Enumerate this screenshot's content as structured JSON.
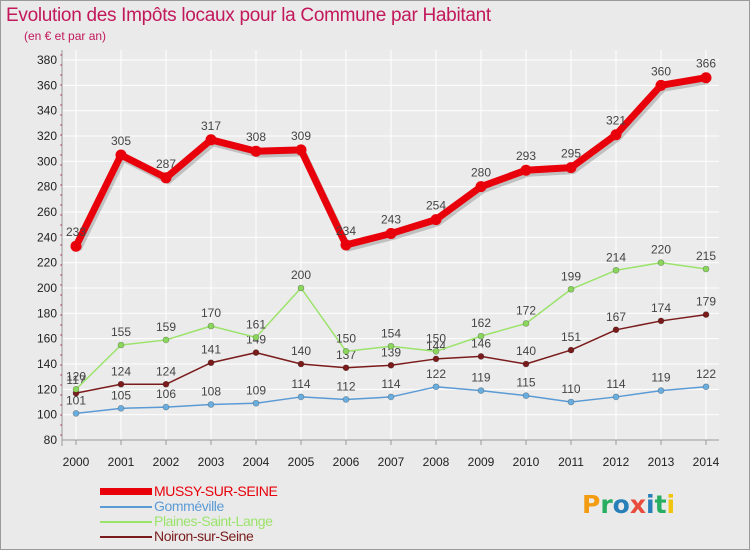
{
  "title": "Evolution des Impôts locaux pour la Commune par Habitant",
  "subtitle": "(en € et par an)",
  "logo": {
    "letters": [
      "P",
      "r",
      "o",
      "x",
      "i",
      "t",
      "i"
    ],
    "colors": [
      "#f39c12",
      "#27ae60",
      "#2980b9",
      "#e74c3c",
      "#2980b9",
      "#27ae60",
      "#f1c40f"
    ]
  },
  "chart_data": {
    "type": "line",
    "title": "Evolution des Impôts locaux pour la Commune par Habitant",
    "subtitle": "(en € et par an)",
    "xlabel": "",
    "ylabel": "",
    "ylim": [
      80,
      380
    ],
    "yticks": [
      80,
      100,
      120,
      140,
      160,
      180,
      200,
      220,
      240,
      260,
      280,
      300,
      320,
      340,
      360,
      380
    ],
    "x": [
      2000,
      2001,
      2002,
      2003,
      2004,
      2005,
      2006,
      2007,
      2008,
      2009,
      2010,
      2011,
      2012,
      2013,
      2014
    ],
    "grid": true,
    "legend_position": "bottom-left",
    "series": [
      {
        "name": "MUSSY-SUR-SEINE",
        "color": "#e8000b",
        "values": [
          233,
          305,
          287,
          317,
          308,
          309,
          234,
          243,
          254,
          280,
          293,
          295,
          321,
          360,
          366
        ]
      },
      {
        "name": "Gomméville",
        "color": "#5b9bd5",
        "values": [
          101,
          105,
          106,
          108,
          109,
          114,
          112,
          114,
          122,
          119,
          115,
          110,
          114,
          119,
          122
        ]
      },
      {
        "name": "Plaines-Saint-Lange",
        "color": "#9be36b",
        "values": [
          120,
          155,
          159,
          170,
          161,
          200,
          150,
          154,
          150,
          162,
          172,
          199,
          214,
          220,
          215
        ]
      },
      {
        "name": "Noiron-sur-Seine",
        "color": "#7b1c1c",
        "values": [
          117,
          124,
          124,
          141,
          149,
          140,
          137,
          139,
          144,
          146,
          140,
          151,
          167,
          174,
          179
        ]
      }
    ]
  }
}
